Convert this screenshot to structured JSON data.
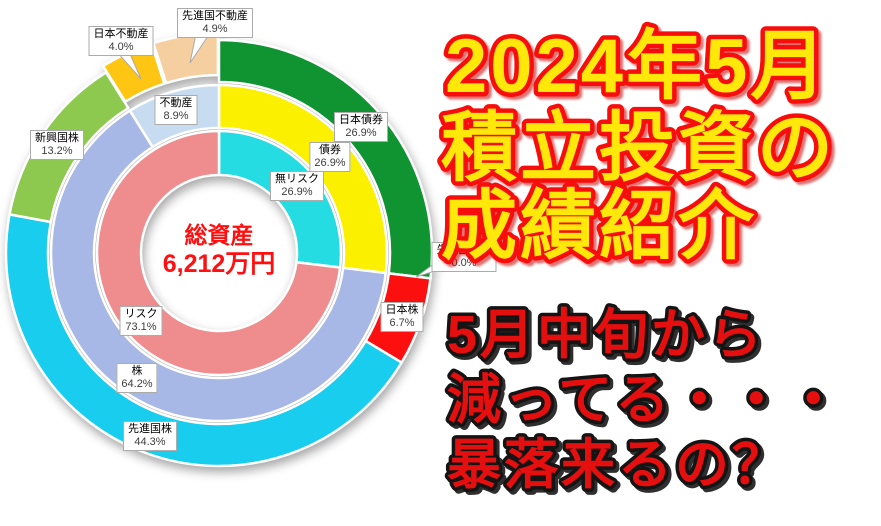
{
  "overlay": {
    "headline": {
      "lines": [
        "2024年5月",
        "積立投資の",
        "成績紹介"
      ],
      "fill": "#FFE80A",
      "outline": "#F80D0D"
    },
    "subheadline": {
      "lines": [
        "5月中旬から",
        "減ってる・・・",
        "暴落来るの？"
      ],
      "fill": "#E60F0F",
      "outline": "#141414"
    }
  },
  "chart_data": {
    "type": "pie",
    "variant": "three-ring-donut",
    "unit": "%",
    "center_label": {
      "title": "総資産",
      "value": "6,212万円",
      "color": "#FF0F0F"
    },
    "rings": [
      {
        "name": "risk-split",
        "position": "inner",
        "segments": [
          {
            "label": "無リスク",
            "value": 26.9,
            "color": "#24DCE2"
          },
          {
            "label": "リスク",
            "value": 73.1,
            "color": "#EF8C8E"
          }
        ]
      },
      {
        "name": "asset-class",
        "position": "middle",
        "segments": [
          {
            "label": "債券",
            "value": 26.9,
            "color": "#FAF000"
          },
          {
            "label": "株",
            "value": 64.2,
            "color": "#A8B8E6"
          },
          {
            "label": "不動産",
            "value": 8.9,
            "color": "#C7DCF0"
          }
        ]
      },
      {
        "name": "asset-detail",
        "position": "outer",
        "segments": [
          {
            "label": "日本債券",
            "value": 26.9,
            "color": "#109432"
          },
          {
            "label": "先進国債券",
            "value": 0.0,
            "color": "#109432"
          },
          {
            "label": "日本株",
            "value": 6.7,
            "color": "#FB100F"
          },
          {
            "label": "先進国株",
            "value": 44.3,
            "color": "#19CDEE"
          },
          {
            "label": "新興国株",
            "value": 13.2,
            "color": "#8DC94E"
          },
          {
            "label": "日本不動産",
            "value": 4.0,
            "color": "#FEC512",
            "exploded": true
          },
          {
            "label": "先進国不動産",
            "value": 4.9,
            "color": "#F5CFA0",
            "exploded": true
          }
        ]
      }
    ]
  }
}
